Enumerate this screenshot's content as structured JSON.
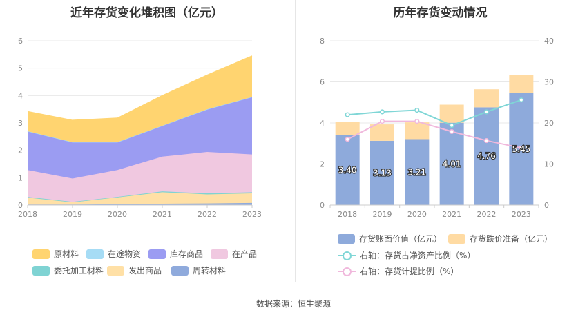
{
  "left_chart": {
    "title": "近年存货变化堆积图（亿元）"
  },
  "right_chart": {
    "title": "历年存货变动情况"
  },
  "source_text": "数据来源：恒生聚源",
  "chart_data": [
    {
      "type": "area",
      "title": "近年存货变化堆积图（亿元）",
      "stacked": true,
      "x": [
        "2018",
        "2019",
        "2020",
        "2021",
        "2022",
        "2023"
      ],
      "ylim": [
        0,
        6
      ],
      "yticks": [
        "0",
        "1",
        "2",
        "3",
        "4",
        "5",
        "6"
      ],
      "grid": true,
      "legend_position": "bottom",
      "series": [
        {
          "name": "周转材料",
          "color": "#8faadc",
          "values": [
            0.02,
            0.02,
            0.03,
            0.05,
            0.06,
            0.08
          ]
        },
        {
          "name": "发出商品",
          "color": "#ffe0a6",
          "values": [
            0.25,
            0.08,
            0.25,
            0.42,
            0.33,
            0.35
          ]
        },
        {
          "name": "委托加工材料",
          "color": "#7fd3d3",
          "values": [
            0.03,
            0.02,
            0.02,
            0.03,
            0.04,
            0.04
          ]
        },
        {
          "name": "在产品",
          "color": "#f0c8e0",
          "values": [
            0.98,
            0.85,
            0.98,
            1.27,
            1.51,
            1.38
          ]
        },
        {
          "name": "库存商品",
          "color": "#9b9cf2",
          "values": [
            1.42,
            1.33,
            1.02,
            1.13,
            1.56,
            2.1
          ]
        },
        {
          "name": "在途物资",
          "color": "#a6dcf5",
          "values": [
            0.0,
            0.0,
            0.0,
            0.0,
            0.0,
            0.0
          ]
        },
        {
          "name": "原材料",
          "color": "#ffd470",
          "values": [
            0.72,
            0.8,
            0.88,
            1.1,
            1.25,
            1.5
          ]
        }
      ],
      "legend_order": [
        "原材料",
        "在途物资",
        "库存商品",
        "在产品",
        "委托加工材料",
        "发出商品",
        "周转材料"
      ]
    },
    {
      "type": "bar",
      "title": "历年存货变动情况",
      "stacked": true,
      "categories": [
        "2018",
        "2019",
        "2020",
        "2021",
        "2022",
        "2023"
      ],
      "ylim": [
        0,
        8
      ],
      "yticks": [
        "0",
        "2",
        "4",
        "6",
        "8"
      ],
      "y2lim": [
        0,
        40
      ],
      "y2ticks": [
        "0",
        "10",
        "20",
        "30",
        "40"
      ],
      "grid": true,
      "legend_position": "bottom",
      "series": [
        {
          "name": "存货账面价值（亿元）",
          "color": "#8eaadb",
          "values": [
            3.4,
            3.13,
            3.21,
            4.01,
            4.76,
            5.45
          ],
          "labels": [
            "3.40",
            "3.13",
            "3.21",
            "4.01",
            "4.76",
            "5.45"
          ]
        },
        {
          "name": "存货跌价准备（亿元）",
          "color": "#ffdba3",
          "values": [
            0.65,
            0.8,
            0.82,
            0.88,
            0.88,
            0.88
          ]
        }
      ],
      "line_series": [
        {
          "name": "右轴：存货占净资产比例（%）",
          "color": "#7fd6d6",
          "axis": "right",
          "values": [
            22.0,
            22.7,
            23.1,
            19.4,
            22.7,
            25.6
          ]
        },
        {
          "name": "右轴：存货计提比例（%）",
          "color": "#f0b8dc",
          "axis": "right",
          "values": [
            16.0,
            20.4,
            20.4,
            17.9,
            15.7,
            13.9
          ]
        }
      ]
    }
  ]
}
